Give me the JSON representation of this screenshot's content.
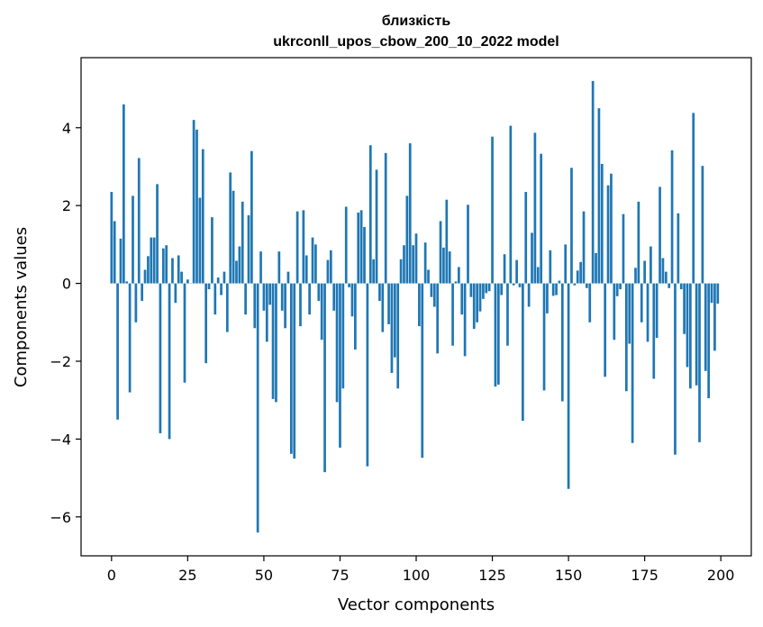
{
  "chart_data": {
    "type": "bar",
    "title": [
      "близкість",
      "ukrconll_upos_cbow_200_10_2022 model"
    ],
    "xlabel": "Vector components",
    "ylabel": "Components values",
    "xlim": [
      -10,
      210
    ],
    "ylim": [
      -7,
      5.8
    ],
    "x_ticks": [
      0,
      25,
      50,
      75,
      100,
      125,
      150,
      175,
      200
    ],
    "y_ticks": [
      -6,
      -4,
      -2,
      0,
      2,
      4
    ],
    "y_tick_labels": [
      "−6",
      "−4",
      "−2",
      "0",
      "2",
      "4"
    ],
    "grid": false,
    "bar_color": "#1f77b4",
    "values": [
      2.35,
      1.6,
      -3.5,
      1.15,
      4.6,
      0.05,
      -2.8,
      2.25,
      -1.0,
      3.22,
      -0.45,
      0.35,
      0.7,
      1.18,
      1.18,
      2.55,
      -3.85,
      0.9,
      0.98,
      -4.0,
      0.65,
      -0.5,
      0.72,
      0.3,
      -2.55,
      0.1,
      0.0,
      4.2,
      3.95,
      2.2,
      3.45,
      -2.05,
      -0.15,
      1.7,
      -0.8,
      0.15,
      -0.3,
      0.3,
      -1.25,
      2.85,
      2.38,
      0.58,
      0.95,
      2.1,
      -0.8,
      1.75,
      3.4,
      -1.15,
      -6.4,
      0.82,
      -0.7,
      -1.5,
      -0.55,
      -2.97,
      -3.05,
      0.82,
      -0.7,
      -1.15,
      0.3,
      -4.38,
      -4.5,
      1.85,
      -1.1,
      1.88,
      0.72,
      -0.8,
      1.18,
      1.0,
      -0.45,
      -1.45,
      -4.85,
      0.6,
      0.85,
      -0.7,
      -3.05,
      -4.22,
      -2.7,
      1.97,
      -0.1,
      -0.85,
      -1.7,
      1.82,
      1.88,
      1.45,
      -4.7,
      3.55,
      0.62,
      2.92,
      -0.45,
      -1.25,
      3.35,
      -1.05,
      -2.3,
      -1.9,
      -2.7,
      0.62,
      0.98,
      2.25,
      3.6,
      0.98,
      1.28,
      -1.1,
      -4.48,
      1.05,
      0.35,
      -0.35,
      -0.6,
      -1.8,
      1.6,
      0.92,
      2.15,
      0.82,
      -1.6,
      0.05,
      0.42,
      -0.8,
      -1.87,
      2.02,
      -0.35,
      -1.17,
      -1.0,
      -0.72,
      -0.4,
      -0.25,
      -0.2,
      3.77,
      -2.65,
      -2.6,
      -0.3,
      0.75,
      -1.6,
      4.05,
      -0.05,
      0.6,
      -0.1,
      -3.53,
      2.35,
      -0.6,
      1.3,
      3.87,
      0.42,
      3.33,
      -2.75,
      -0.77,
      0.85,
      -0.32,
      -0.3,
      0.07,
      -3.03,
      1.0,
      -5.28,
      2.97,
      -0.05,
      0.33,
      0.55,
      1.85,
      -0.12,
      -1.0,
      5.2,
      0.78,
      4.5,
      3.07,
      -2.4,
      2.52,
      2.82,
      -1.45,
      -0.33,
      -0.15,
      1.78,
      -2.77,
      -1.55,
      -4.1,
      0.4,
      2.1,
      -1.0,
      0.58,
      -1.5,
      0.95,
      -2.45,
      -1.4,
      2.48,
      0.65,
      0.3,
      -0.12,
      3.42,
      -4.4,
      1.8,
      -0.15,
      -1.3,
      -2.15,
      -2.7,
      4.38,
      -2.62,
      -4.08,
      3.02,
      -2.25,
      -2.95,
      -0.5,
      -1.73,
      -0.52
    ]
  }
}
